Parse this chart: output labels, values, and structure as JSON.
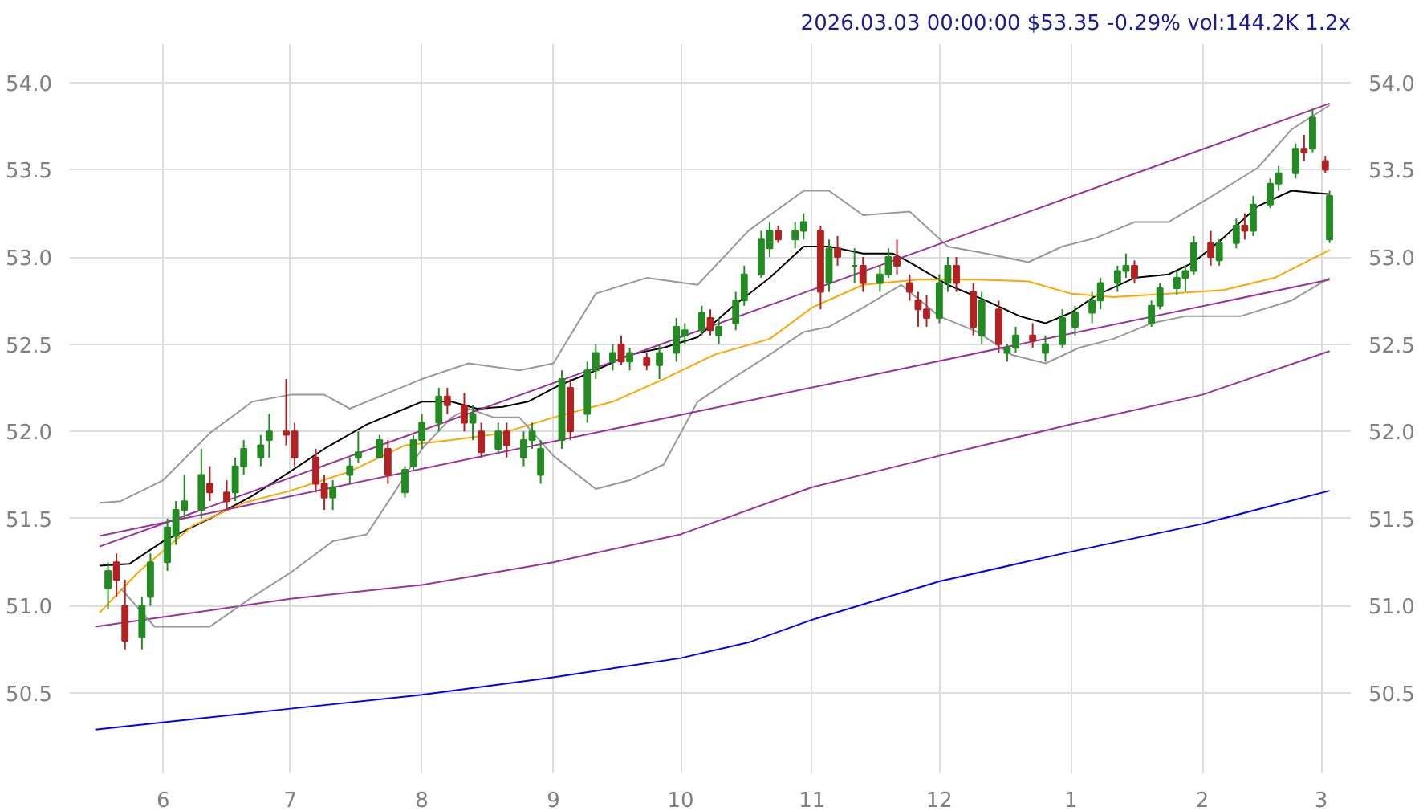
{
  "chart_data": {
    "type": "candlestick",
    "title": "2026.03.03 00:00:00 $53.35 -0.29% vol:144.2K 1.2x",
    "x": [
      "2025-05-19",
      "2025-05-21",
      "2025-05-23",
      "2025-05-27",
      "2025-05-29",
      "2025-06-02",
      "2025-06-04",
      "2025-06-06",
      "2025-06-10",
      "2025-06-12",
      "2025-06-16",
      "2025-06-18",
      "2025-06-20",
      "2025-06-24",
      "2025-06-26",
      "2025-06-30",
      "2025-07-02",
      "2025-07-07",
      "2025-07-09",
      "2025-07-11",
      "2025-07-15",
      "2025-07-17",
      "2025-07-22",
      "2025-07-24",
      "2025-07-28",
      "2025-07-30",
      "2025-08-01",
      "2025-08-05",
      "2025-08-07",
      "2025-08-11",
      "2025-08-13",
      "2025-08-15",
      "2025-08-19",
      "2025-08-21",
      "2025-08-25",
      "2025-08-27",
      "2025-08-29",
      "2025-09-03",
      "2025-09-05",
      "2025-09-09",
      "2025-09-11",
      "2025-09-15",
      "2025-09-17",
      "2025-09-19",
      "2025-09-23",
      "2025-09-26",
      "2025-09-30",
      "2025-10-02",
      "2025-10-06",
      "2025-10-08",
      "2025-10-10",
      "2025-10-14",
      "2025-10-16",
      "2025-10-20",
      "2025-10-22",
      "2025-10-24",
      "2025-10-28",
      "2025-10-30",
      "2025-11-03",
      "2025-11-05",
      "2025-11-07",
      "2025-11-11",
      "2025-11-13",
      "2025-11-17",
      "2025-11-19",
      "2025-11-21",
      "2025-11-24",
      "2025-11-26",
      "2025-11-28",
      "2025-12-01",
      "2025-12-03",
      "2025-12-05",
      "2025-12-09",
      "2025-12-11",
      "2025-12-15",
      "2025-12-17",
      "2025-12-19",
      "2025-12-23",
      "2025-12-26",
      "2025-12-30",
      "2026-01-02",
      "2026-01-06",
      "2026-01-08",
      "2026-01-12",
      "2026-01-14",
      "2026-01-16",
      "2026-01-20",
      "2026-01-22",
      "2026-01-26",
      "2026-01-28",
      "2026-01-30",
      "2026-02-03",
      "2026-02-05",
      "2026-02-09",
      "2026-02-11",
      "2026-02-13",
      "2026-02-17",
      "2026-02-19",
      "2026-02-23",
      "2026-02-25",
      "2026-02-27",
      "2026-03-02",
      "2026-03-03"
    ],
    "ohlc": [
      [
        51.1,
        51.25,
        50.98,
        51.2
      ],
      [
        51.25,
        51.3,
        51.05,
        51.15
      ],
      [
        51.0,
        51.15,
        50.75,
        50.8
      ],
      [
        50.82,
        51.05,
        50.75,
        51.0
      ],
      [
        51.05,
        51.3,
        51.0,
        51.25
      ],
      [
        51.25,
        51.5,
        51.2,
        51.45
      ],
      [
        51.4,
        51.6,
        51.35,
        51.55
      ],
      [
        51.55,
        51.75,
        51.5,
        51.6
      ],
      [
        51.55,
        51.9,
        51.5,
        51.75
      ],
      [
        51.7,
        51.8,
        51.6,
        51.65
      ],
      [
        51.65,
        51.72,
        51.55,
        51.6
      ],
      [
        51.65,
        51.85,
        51.6,
        51.8
      ],
      [
        51.8,
        51.95,
        51.75,
        51.9
      ],
      [
        51.85,
        51.98,
        51.8,
        51.92
      ],
      [
        51.95,
        52.1,
        51.85,
        52.0
      ],
      [
        52.0,
        52.3,
        51.92,
        51.98
      ],
      [
        52.0,
        52.05,
        51.8,
        51.85
      ],
      [
        51.85,
        51.9,
        51.65,
        51.7
      ],
      [
        51.7,
        51.75,
        51.55,
        51.62
      ],
      [
        51.62,
        51.72,
        51.55,
        51.68
      ],
      [
        51.75,
        51.85,
        51.7,
        51.8
      ],
      [
        51.85,
        52.0,
        51.82,
        51.88
      ],
      [
        51.85,
        51.98,
        51.85,
        51.95
      ],
      [
        51.9,
        51.95,
        51.7,
        51.75
      ],
      [
        51.65,
        51.8,
        51.62,
        51.78
      ],
      [
        51.8,
        51.98,
        51.78,
        51.95
      ],
      [
        51.95,
        52.1,
        51.9,
        52.05
      ],
      [
        52.05,
        52.25,
        52.0,
        52.2
      ],
      [
        52.2,
        52.25,
        52.1,
        52.15
      ],
      [
        52.15,
        52.22,
        52.0,
        52.05
      ],
      [
        52.05,
        52.15,
        51.95,
        52.1
      ],
      [
        52.0,
        52.05,
        51.85,
        51.88
      ],
      [
        51.9,
        52.05,
        51.88,
        52.0
      ],
      [
        52.0,
        52.05,
        51.85,
        51.92
      ],
      [
        51.85,
        52.0,
        51.8,
        51.95
      ],
      [
        51.95,
        52.05,
        51.9,
        52.0
      ],
      [
        51.75,
        51.95,
        51.7,
        51.9
      ],
      [
        51.95,
        52.35,
        51.9,
        52.3
      ],
      [
        52.25,
        52.3,
        51.95,
        52.0
      ],
      [
        52.1,
        52.4,
        52.05,
        52.35
      ],
      [
        52.35,
        52.5,
        52.3,
        52.45
      ],
      [
        52.4,
        52.5,
        52.35,
        52.45
      ],
      [
        52.5,
        52.55,
        52.38,
        52.4
      ],
      [
        52.4,
        52.48,
        52.35,
        52.45
      ],
      [
        52.42,
        52.45,
        52.35,
        52.38
      ],
      [
        52.38,
        52.5,
        52.3,
        52.45
      ],
      [
        52.45,
        52.65,
        52.4,
        52.6
      ],
      [
        52.55,
        52.62,
        52.5,
        52.58
      ],
      [
        52.58,
        52.72,
        52.55,
        52.68
      ],
      [
        52.65,
        52.7,
        52.55,
        52.58
      ],
      [
        52.55,
        52.65,
        52.5,
        52.6
      ],
      [
        52.62,
        52.8,
        52.58,
        52.75
      ],
      [
        52.75,
        52.95,
        52.72,
        52.9
      ],
      [
        52.9,
        53.15,
        52.88,
        53.1
      ],
      [
        53.05,
        53.2,
        53.0,
        53.15
      ],
      [
        53.15,
        53.18,
        53.08,
        53.1
      ],
      [
        53.1,
        53.2,
        53.05,
        53.15
      ],
      [
        53.15,
        53.25,
        53.1,
        53.2
      ],
      [
        53.15,
        53.18,
        52.7,
        52.8
      ],
      [
        52.85,
        53.1,
        52.8,
        53.05
      ],
      [
        53.05,
        53.12,
        52.95,
        53.0
      ],
      [
        52.95,
        53.05,
        52.85,
        52.95
      ],
      [
        52.95,
        53.0,
        52.8,
        52.85
      ],
      [
        52.85,
        52.95,
        52.8,
        52.9
      ],
      [
        52.9,
        53.05,
        52.88,
        53.0
      ],
      [
        53.0,
        53.1,
        52.9,
        52.95
      ],
      [
        52.85,
        52.9,
        52.75,
        52.8
      ],
      [
        52.75,
        52.8,
        52.6,
        52.7
      ],
      [
        52.7,
        52.78,
        52.6,
        52.65
      ],
      [
        52.65,
        52.9,
        52.62,
        52.85
      ],
      [
        52.85,
        53.0,
        52.8,
        52.95
      ],
      [
        52.95,
        53.0,
        52.8,
        52.85
      ],
      [
        52.8,
        52.85,
        52.55,
        52.6
      ],
      [
        52.55,
        52.8,
        52.5,
        52.75
      ],
      [
        52.7,
        52.75,
        52.45,
        52.5
      ],
      [
        52.45,
        52.5,
        52.4,
        52.48
      ],
      [
        52.48,
        52.6,
        52.45,
        52.55
      ],
      [
        52.55,
        52.62,
        52.48,
        52.52
      ],
      [
        52.45,
        52.55,
        52.4,
        52.5
      ],
      [
        52.5,
        52.7,
        52.48,
        52.65
      ],
      [
        52.6,
        52.72,
        52.55,
        52.68
      ],
      [
        52.68,
        52.8,
        52.62,
        52.75
      ],
      [
        52.75,
        52.88,
        52.7,
        52.85
      ],
      [
        52.85,
        52.95,
        52.8,
        52.92
      ],
      [
        52.92,
        53.02,
        52.88,
        52.95
      ],
      [
        52.95,
        52.98,
        52.85,
        52.88
      ],
      [
        52.62,
        52.75,
        52.6,
        52.72
      ],
      [
        52.72,
        52.85,
        52.7,
        52.82
      ],
      [
        52.82,
        52.92,
        52.78,
        52.88
      ],
      [
        52.88,
        52.95,
        52.8,
        52.92
      ],
      [
        52.92,
        53.12,
        52.9,
        53.08
      ],
      [
        53.08,
        53.15,
        52.95,
        53.0
      ],
      [
        52.98,
        53.1,
        52.95,
        53.08
      ],
      [
        53.08,
        53.22,
        53.05,
        53.18
      ],
      [
        53.18,
        53.25,
        53.1,
        53.15
      ],
      [
        53.15,
        53.35,
        53.12,
        53.3
      ],
      [
        53.3,
        53.45,
        53.28,
        53.42
      ],
      [
        53.42,
        53.52,
        53.38,
        53.48
      ],
      [
        53.48,
        53.65,
        53.45,
        53.62
      ],
      [
        53.62,
        53.7,
        53.55,
        53.6
      ],
      [
        53.62,
        53.85,
        53.6,
        53.8
      ],
      [
        53.55,
        53.58,
        53.48,
        53.5
      ],
      [
        53.1,
        53.38,
        53.08,
        53.35
      ]
    ],
    "colors": [
      "#228b22",
      "#b22222",
      "#b22222",
      "#228b22",
      "#228b22",
      "#228b22",
      "#228b22",
      "#228b22",
      "#228b22",
      "#b22222",
      "#b22222",
      "#228b22",
      "#228b22",
      "#228b22",
      "#228b22",
      "#b22222",
      "#b22222",
      "#b22222",
      "#b22222",
      "#228b22",
      "#228b22",
      "#228b22",
      "#228b22",
      "#b22222",
      "#228b22",
      "#228b22",
      "#228b22",
      "#228b22",
      "#b22222",
      "#b22222",
      "#228b22",
      "#b22222",
      "#228b22",
      "#b22222",
      "#228b22",
      "#228b22",
      "#228b22",
      "#228b22",
      "#b22222",
      "#228b22",
      "#228b22",
      "#228b22",
      "#b22222",
      "#228b22",
      "#b22222",
      "#228b22",
      "#228b22",
      "#228b22",
      "#228b22",
      "#b22222",
      "#228b22",
      "#228b22",
      "#228b22",
      "#228b22",
      "#228b22",
      "#b22222",
      "#228b22",
      "#228b22",
      "#b22222",
      "#228b22",
      "#b22222",
      "#228b22",
      "#b22222",
      "#228b22",
      "#228b22",
      "#b22222",
      "#b22222",
      "#b22222",
      "#b22222",
      "#228b22",
      "#228b22",
      "#b22222",
      "#b22222",
      "#228b22",
      "#b22222",
      "#228b22",
      "#228b22",
      "#b22222",
      "#228b22",
      "#228b22",
      "#228b22",
      "#228b22",
      "#228b22",
      "#228b22",
      "#228b22",
      "#b22222",
      "#228b22",
      "#228b22",
      "#228b22",
      "#228b22",
      "#228b22",
      "#b22222",
      "#228b22",
      "#228b22",
      "#b22222",
      "#228b22",
      "#228b22",
      "#228b22",
      "#228b22",
      "#b22222",
      "#228b22",
      "#b22222",
      "#228b22"
    ],
    "series": [
      {
        "type": "line",
        "color": "#000000",
        "x": [
          "2025-05-17",
          "2025-05-24",
          "2025-06-01",
          "2025-06-12",
          "2025-06-22",
          "2025-07-01",
          "2025-07-09",
          "2025-07-19",
          "2025-07-28",
          "2025-08-01",
          "2025-08-08",
          "2025-08-14",
          "2025-08-20",
          "2025-08-26",
          "2025-09-02",
          "2025-09-11",
          "2025-09-19",
          "2025-09-27",
          "2025-10-05",
          "2025-10-13",
          "2025-10-22",
          "2025-10-30",
          "2025-11-05",
          "2025-11-13",
          "2025-11-20",
          "2025-11-24",
          "2025-12-03",
          "2025-12-12",
          "2025-12-20",
          "2025-12-26",
          "2026-01-01",
          "2026-01-07",
          "2026-01-16",
          "2026-01-24",
          "2026-01-30",
          "2026-02-06",
          "2026-02-14",
          "2026-02-22",
          "2026-03-03"
        ],
        "values": [
          51.23,
          51.24,
          51.37,
          51.5,
          51.63,
          51.77,
          51.9,
          52.04,
          52.13,
          52.17,
          52.17,
          52.13,
          52.14,
          52.17,
          52.26,
          52.35,
          52.44,
          52.48,
          52.54,
          52.71,
          52.88,
          53.06,
          53.06,
          53.02,
          53.02,
          52.97,
          52.84,
          52.75,
          52.66,
          52.62,
          52.68,
          52.78,
          52.88,
          52.9,
          52.97,
          53.11,
          53.29,
          53.38,
          53.36
        ]
      },
      {
        "type": "line",
        "color": "#ffa500",
        "x": [
          "2025-05-17",
          "2025-05-26",
          "2025-06-08",
          "2025-06-20",
          "2025-07-01",
          "2025-07-15",
          "2025-07-28",
          "2025-08-08",
          "2025-08-20",
          "2025-09-01",
          "2025-09-15",
          "2025-09-27",
          "2025-10-09",
          "2025-10-22",
          "2025-11-01",
          "2025-11-13",
          "2025-11-26",
          "2025-12-10",
          "2025-12-22",
          "2026-01-01",
          "2026-01-11",
          "2026-01-24",
          "2026-02-06",
          "2026-02-18",
          "2026-03-03"
        ],
        "values": [
          50.96,
          51.19,
          51.46,
          51.59,
          51.66,
          51.77,
          51.92,
          51.95,
          51.99,
          52.08,
          52.17,
          52.3,
          52.44,
          52.53,
          52.71,
          52.84,
          52.87,
          52.87,
          52.86,
          52.79,
          52.77,
          52.79,
          52.81,
          52.88,
          53.04
        ]
      },
      {
        "type": "line",
        "color": "#993399",
        "x": [
          "2025-05-16",
          "2025-07-01",
          "2025-08-01",
          "2025-09-01",
          "2025-10-01",
          "2025-11-01",
          "2025-12-01",
          "2026-01-01",
          "2026-02-01",
          "2026-03-03"
        ],
        "values": [
          50.88,
          51.04,
          51.12,
          51.25,
          51.41,
          51.68,
          51.86,
          52.04,
          52.21,
          52.46
        ]
      },
      {
        "type": "line",
        "color": "#0000ff",
        "x": [
          "2025-05-16",
          "2025-07-01",
          "2025-08-01",
          "2025-09-01",
          "2025-10-01",
          "2025-10-17",
          "2025-11-01",
          "2025-12-01",
          "2026-01-01",
          "2026-02-01",
          "2026-03-03"
        ],
        "values": [
          50.29,
          50.41,
          50.49,
          50.59,
          50.7,
          50.79,
          50.92,
          51.14,
          51.31,
          51.47,
          51.66
        ]
      },
      {
        "type": "line",
        "color": "#999999",
        "x": [
          "2025-05-17",
          "2025-05-22",
          "2025-06-01",
          "2025-06-12",
          "2025-06-22",
          "2025-07-01",
          "2025-07-09",
          "2025-07-15",
          "2025-07-23",
          "2025-08-01",
          "2025-08-12",
          "2025-08-24",
          "2025-09-01",
          "2025-09-11",
          "2025-09-23",
          "2025-10-05",
          "2025-10-17",
          "2025-10-30",
          "2025-11-05",
          "2025-11-13",
          "2025-11-24",
          "2025-12-03",
          "2025-12-12",
          "2025-12-22",
          "2025-12-30",
          "2026-01-07",
          "2026-01-16",
          "2026-01-24",
          "2026-02-02",
          "2026-02-14",
          "2026-02-22",
          "2026-03-03"
        ],
        "values": [
          51.59,
          51.6,
          51.72,
          51.99,
          52.17,
          52.21,
          52.21,
          52.13,
          52.21,
          52.3,
          52.39,
          52.35,
          52.39,
          52.79,
          52.88,
          52.84,
          53.15,
          53.38,
          53.38,
          53.24,
          53.26,
          53.06,
          53.02,
          52.97,
          53.06,
          53.11,
          53.2,
          53.2,
          53.33,
          53.51,
          53.73,
          53.87
        ]
      },
      {
        "type": "line",
        "color": "#999999",
        "x": [
          "2025-05-22",
          "2025-05-30",
          "2025-06-12",
          "2025-06-22",
          "2025-07-01",
          "2025-07-11",
          "2025-07-19",
          "2025-07-25",
          "2025-08-01",
          "2025-08-08",
          "2025-08-12",
          "2025-08-18",
          "2025-08-24",
          "2025-09-01",
          "2025-09-11",
          "2025-09-19",
          "2025-09-27",
          "2025-10-05",
          "2025-10-13",
          "2025-10-22",
          "2025-10-30",
          "2025-11-05",
          "2025-11-13",
          "2025-11-22",
          "2025-12-01",
          "2025-12-10",
          "2025-12-18",
          "2025-12-26",
          "2026-01-03",
          "2026-01-11",
          "2026-01-20",
          "2026-01-28",
          "2026-02-10",
          "2026-02-22",
          "2026-03-03"
        ],
        "values": [
          51.1,
          50.88,
          50.88,
          51.05,
          51.19,
          51.37,
          51.41,
          51.63,
          51.9,
          52.08,
          52.13,
          52.08,
          52.08,
          51.86,
          51.67,
          51.72,
          51.81,
          52.17,
          52.3,
          52.44,
          52.57,
          52.6,
          52.71,
          52.84,
          52.66,
          52.57,
          52.44,
          52.39,
          52.48,
          52.53,
          52.62,
          52.66,
          52.66,
          52.75,
          52.88
        ]
      },
      {
        "type": "line",
        "color": "#993399",
        "x": [
          "2025-05-17",
          "2026-03-03"
        ],
        "values": [
          51.34,
          53.88
        ]
      },
      {
        "type": "line",
        "color": "#993399",
        "x": [
          "2025-05-17",
          "2026-03-03"
        ],
        "values": [
          51.4,
          52.87
        ]
      }
    ],
    "xlim": [
      "2025-05-10",
      "2026-03-08"
    ],
    "xticks": [
      {
        "value": "2025-06-01",
        "label": "6"
      },
      {
        "value": "2025-07-01",
        "label": "7"
      },
      {
        "value": "2025-08-01",
        "label": "8"
      },
      {
        "value": "2025-09-01",
        "label": "9"
      },
      {
        "value": "2025-10-01",
        "label": "10"
      },
      {
        "value": "2025-11-01",
        "label": "11"
      },
      {
        "value": "2025-12-01",
        "label": "12"
      },
      {
        "value": "2026-01-01",
        "label": "1"
      },
      {
        "value": "2026-02-01",
        "label": "2"
      },
      {
        "value": "2026-03-01",
        "label": "3"
      }
    ],
    "ylim": [
      50.04,
      54.22
    ],
    "yticks": [
      50.5,
      {
        "value": 51,
        "label": "51.0"
      },
      51.5,
      {
        "value": 52,
        "label": "52.0"
      },
      52.5,
      {
        "value": 53,
        "label": "53.0"
      },
      53.5,
      {
        "value": 54,
        "label": "54.0"
      }
    ],
    "y2lim": [
      50.04,
      54.22
    ],
    "y2ticks": [
      50.5,
      {
        "value": 51,
        "label": "51.0"
      },
      51.5,
      {
        "value": 52,
        "label": "52.0"
      },
      52.5,
      {
        "value": 53,
        "label": "53.0"
      },
      53.5,
      {
        "value": 54,
        "label": "54.0"
      }
    ],
    "grid": true
  }
}
